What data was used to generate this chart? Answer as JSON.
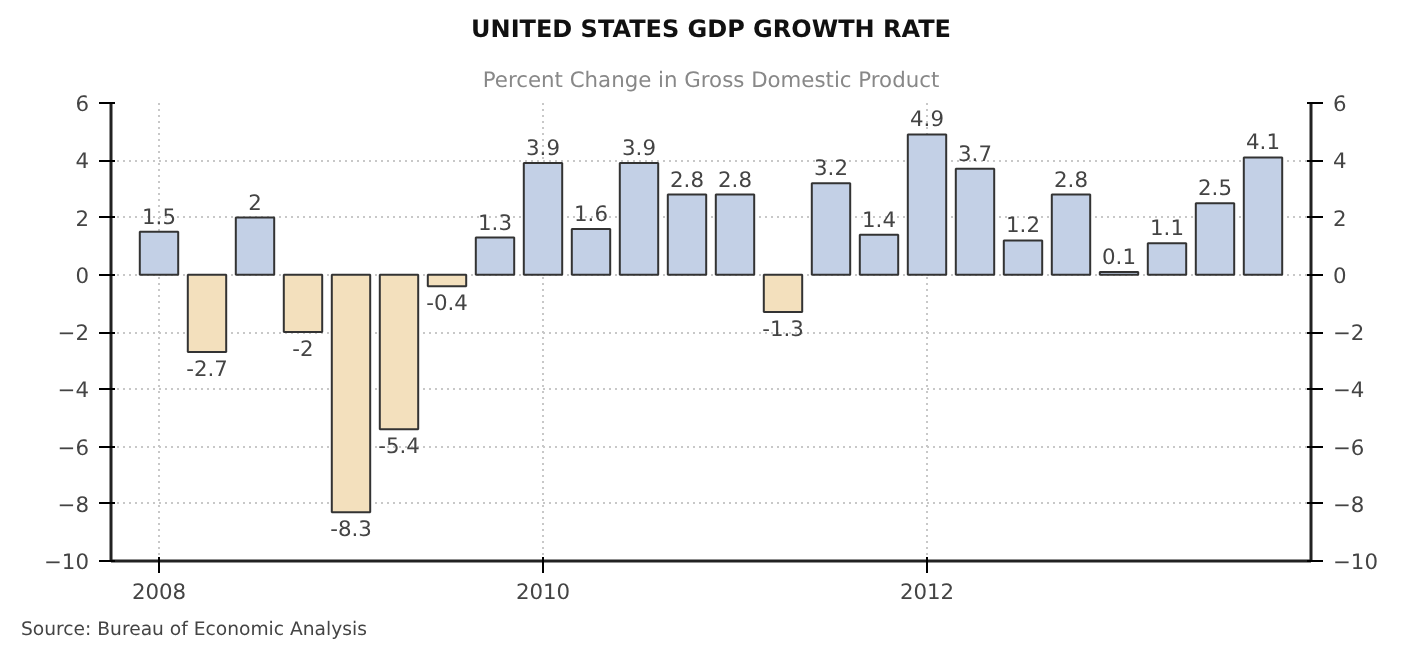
{
  "chart_data": {
    "type": "bar",
    "title": "UNITED STATES GDP GROWTH RATE",
    "subtitle": "Percent Change in Gross Domestic Product",
    "categories": [
      "2008",
      null,
      null,
      null,
      null,
      null,
      null,
      null,
      "2010",
      null,
      null,
      null,
      null,
      null,
      null,
      null,
      "2012",
      null,
      null,
      null,
      null,
      null,
      null,
      null
    ],
    "values": [
      1.5,
      -2.7,
      2,
      -2,
      -8.3,
      -5.4,
      -0.4,
      1.3,
      3.9,
      1.6,
      3.9,
      2.8,
      2.8,
      -1.3,
      3.2,
      1.4,
      4.9,
      3.7,
      1.2,
      2.8,
      0.1,
      1.1,
      2.5,
      4.1
    ],
    "colors": [
      "#c3d0e6",
      "#f3e0bd",
      "#c3d0e6",
      "#f3e0bd",
      "#f3e0bd",
      "#f3e0bd",
      "#f3e0bd",
      "#c3d0e6",
      "#c3d0e6",
      "#c3d0e6",
      "#c3d0e6",
      "#c3d0e6",
      "#c3d0e6",
      "#f3e0bd",
      "#c3d0e6",
      "#c3d0e6",
      "#c3d0e6",
      "#c3d0e6",
      "#c3d0e6",
      "#c3d0e6",
      "#c3d0e6",
      "#c3d0e6",
      "#c3d0e6",
      "#c3d0e6"
    ],
    "ylim": [
      -10,
      6
    ],
    "yticks": [
      -10,
      -8,
      -6,
      -4,
      -2,
      0,
      2,
      4,
      6
    ],
    "y2lim": [
      -10,
      6
    ],
    "y2ticks": [
      -10,
      -8,
      -6,
      -4,
      -2,
      0,
      2,
      4,
      6
    ],
    "data_labels": true,
    "grid": true,
    "annotations": [
      "Source: Bureau of Economic Analysis"
    ]
  }
}
